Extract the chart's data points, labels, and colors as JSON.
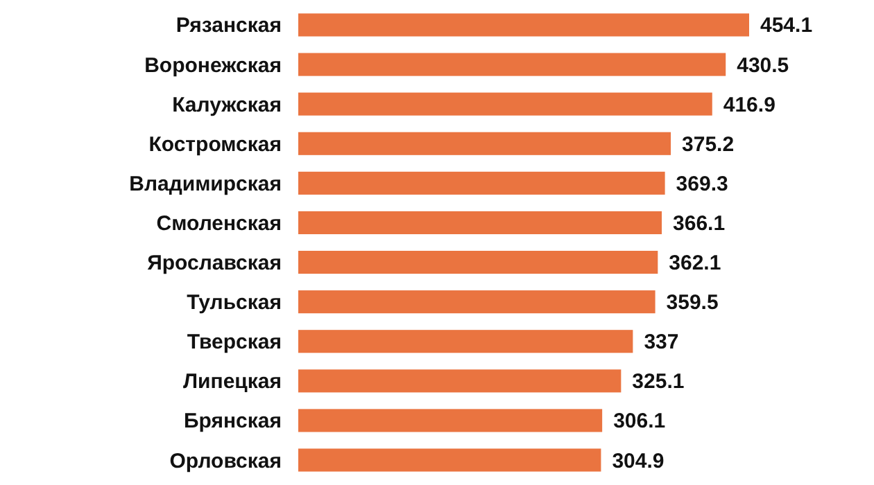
{
  "chart_data": {
    "type": "bar",
    "orientation": "horizontal",
    "categories": [
      "Рязанская",
      "Воронежская",
      "Калужская",
      "Костромская",
      "Владимирская",
      "Смоленская",
      "Ярославская",
      "Тульская",
      "Тверская",
      "Липецкая",
      "Брянская",
      "Орловская"
    ],
    "values": [
      454.1,
      430.5,
      416.9,
      375.2,
      369.3,
      366.1,
      362.1,
      359.5,
      337,
      325.1,
      306.1,
      304.9
    ],
    "color": "#ea7440",
    "data_labels": true
  }
}
